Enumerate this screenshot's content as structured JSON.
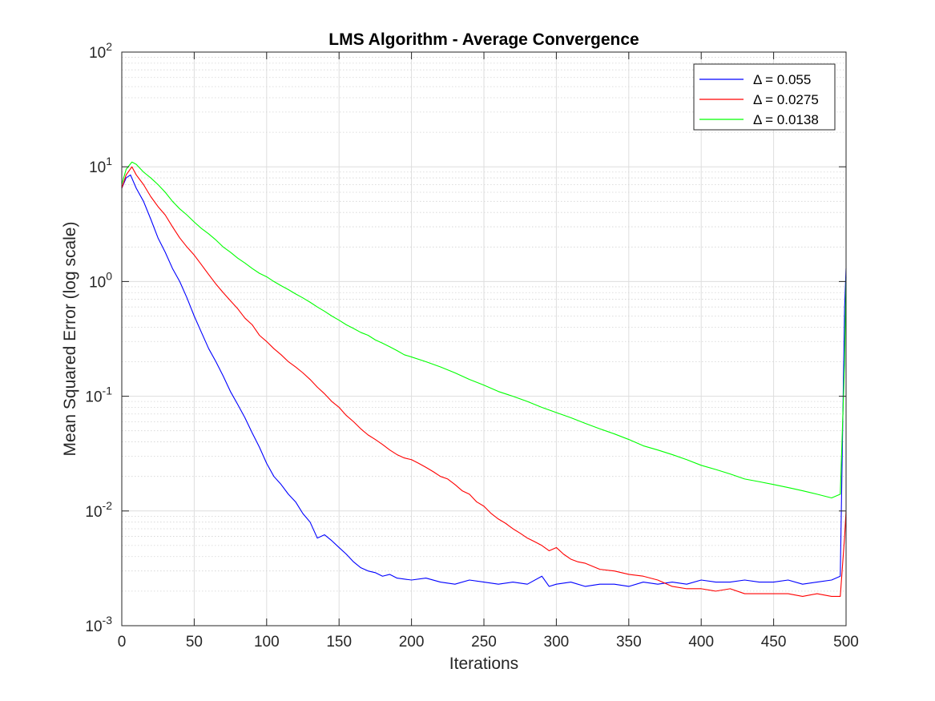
{
  "chart_data": {
    "type": "line",
    "title": "LMS Algorithm - Average Convergence",
    "xlabel": "Iterations",
    "ylabel": "Mean Squared Error (log scale)",
    "xlim": [
      0,
      500
    ],
    "ylim": [
      0.001,
      100
    ],
    "yscale": "log",
    "grid": true,
    "minor_grid": true,
    "legend_position": "top-right",
    "x_ticks": [
      0,
      50,
      100,
      150,
      200,
      250,
      300,
      350,
      400,
      450,
      500
    ],
    "x_tick_labels": [
      "0",
      "50",
      "100",
      "150",
      "200",
      "250",
      "300",
      "350",
      "400",
      "450",
      "500"
    ],
    "y_ticks": [
      {
        "value": 0.001,
        "base": "10",
        "exp": "-3"
      },
      {
        "value": 0.01,
        "base": "10",
        "exp": "-2"
      },
      {
        "value": 0.1,
        "base": "10",
        "exp": "-1"
      },
      {
        "value": 1,
        "base": "10",
        "exp": "0"
      },
      {
        "value": 10,
        "base": "10",
        "exp": "1"
      },
      {
        "value": 100,
        "base": "10",
        "exp": "2"
      }
    ],
    "series": [
      {
        "name": "Δ = 0.055",
        "color": "#0000ff",
        "x": [
          0,
          3,
          6,
          10,
          15,
          20,
          25,
          30,
          35,
          40,
          45,
          50,
          55,
          60,
          65,
          70,
          75,
          80,
          85,
          90,
          95,
          100,
          105,
          110,
          115,
          120,
          125,
          130,
          135,
          140,
          145,
          150,
          155,
          160,
          165,
          170,
          175,
          180,
          185,
          190,
          200,
          210,
          220,
          230,
          240,
          250,
          260,
          270,
          280,
          290,
          295,
          300,
          310,
          320,
          330,
          340,
          350,
          360,
          370,
          380,
          390,
          400,
          410,
          420,
          430,
          440,
          450,
          460,
          470,
          480,
          490,
          496,
          499,
          500
        ],
        "y": [
          6.5,
          8.0,
          8.5,
          6.5,
          5.0,
          3.5,
          2.4,
          1.8,
          1.3,
          1.0,
          0.72,
          0.5,
          0.36,
          0.26,
          0.2,
          0.15,
          0.11,
          0.085,
          0.065,
          0.048,
          0.036,
          0.026,
          0.02,
          0.017,
          0.014,
          0.012,
          0.0095,
          0.008,
          0.0058,
          0.0062,
          0.0055,
          0.0048,
          0.0042,
          0.0036,
          0.0032,
          0.003,
          0.0029,
          0.0027,
          0.0028,
          0.0026,
          0.0025,
          0.0026,
          0.0024,
          0.0023,
          0.0025,
          0.0024,
          0.0023,
          0.0024,
          0.0023,
          0.0027,
          0.0022,
          0.0023,
          0.0024,
          0.0022,
          0.0023,
          0.0023,
          0.0022,
          0.0024,
          0.0023,
          0.0024,
          0.0023,
          0.0025,
          0.0024,
          0.0024,
          0.0025,
          0.0024,
          0.0024,
          0.0025,
          0.0023,
          0.0024,
          0.0025,
          0.0027,
          0.6,
          1.3
        ]
      },
      {
        "name": "Δ = 0.0275",
        "color": "#ff0000",
        "x": [
          0,
          3,
          7,
          10,
          15,
          20,
          25,
          30,
          35,
          40,
          45,
          50,
          55,
          60,
          65,
          70,
          75,
          80,
          85,
          90,
          95,
          100,
          105,
          110,
          115,
          120,
          125,
          130,
          135,
          140,
          145,
          150,
          155,
          160,
          165,
          170,
          175,
          180,
          185,
          190,
          195,
          200,
          205,
          210,
          215,
          220,
          225,
          230,
          235,
          240,
          245,
          250,
          255,
          260,
          265,
          270,
          275,
          280,
          285,
          290,
          295,
          300,
          305,
          310,
          315,
          320,
          330,
          340,
          350,
          360,
          370,
          380,
          390,
          400,
          410,
          420,
          430,
          440,
          450,
          460,
          470,
          480,
          490,
          496,
          499,
          500
        ],
        "y": [
          6.5,
          8.5,
          10.0,
          8.5,
          7.0,
          5.5,
          4.5,
          3.8,
          3.0,
          2.4,
          2.0,
          1.7,
          1.4,
          1.15,
          0.95,
          0.8,
          0.68,
          0.58,
          0.48,
          0.42,
          0.34,
          0.3,
          0.26,
          0.23,
          0.2,
          0.18,
          0.16,
          0.14,
          0.12,
          0.105,
          0.09,
          0.08,
          0.068,
          0.06,
          0.052,
          0.046,
          0.042,
          0.038,
          0.034,
          0.031,
          0.029,
          0.028,
          0.026,
          0.024,
          0.022,
          0.02,
          0.019,
          0.017,
          0.015,
          0.014,
          0.012,
          0.011,
          0.0095,
          0.0085,
          0.0078,
          0.007,
          0.0064,
          0.0058,
          0.0054,
          0.005,
          0.0045,
          0.0048,
          0.0042,
          0.0038,
          0.0036,
          0.0035,
          0.0031,
          0.003,
          0.0028,
          0.0027,
          0.0025,
          0.0022,
          0.0021,
          0.0021,
          0.002,
          0.0021,
          0.0019,
          0.0019,
          0.0019,
          0.0019,
          0.0018,
          0.0019,
          0.0018,
          0.0018,
          0.006,
          0.01
        ]
      },
      {
        "name": "Δ = 0.0138",
        "color": "#00ff00",
        "x": [
          0,
          3,
          7,
          10,
          15,
          20,
          25,
          30,
          35,
          40,
          45,
          50,
          55,
          60,
          65,
          70,
          75,
          80,
          85,
          90,
          95,
          100,
          105,
          110,
          115,
          120,
          125,
          130,
          135,
          140,
          145,
          150,
          155,
          160,
          165,
          170,
          175,
          180,
          185,
          190,
          195,
          200,
          210,
          220,
          230,
          240,
          250,
          260,
          270,
          280,
          290,
          300,
          310,
          320,
          330,
          340,
          350,
          360,
          370,
          380,
          390,
          400,
          410,
          420,
          430,
          440,
          450,
          460,
          470,
          480,
          490,
          496,
          499,
          500
        ],
        "y": [
          7.0,
          9.5,
          11.0,
          10.5,
          9.0,
          8.0,
          7.0,
          6.0,
          5.0,
          4.3,
          3.8,
          3.3,
          2.9,
          2.6,
          2.3,
          2.0,
          1.8,
          1.6,
          1.45,
          1.3,
          1.18,
          1.1,
          1.0,
          0.92,
          0.85,
          0.78,
          0.72,
          0.66,
          0.6,
          0.55,
          0.5,
          0.46,
          0.42,
          0.39,
          0.36,
          0.34,
          0.31,
          0.29,
          0.27,
          0.25,
          0.23,
          0.22,
          0.2,
          0.18,
          0.16,
          0.14,
          0.125,
          0.11,
          0.1,
          0.09,
          0.08,
          0.072,
          0.065,
          0.058,
          0.052,
          0.047,
          0.042,
          0.037,
          0.034,
          0.031,
          0.028,
          0.025,
          0.023,
          0.021,
          0.019,
          0.018,
          0.017,
          0.016,
          0.015,
          0.014,
          0.013,
          0.014,
          0.2,
          1.1
        ]
      }
    ]
  }
}
